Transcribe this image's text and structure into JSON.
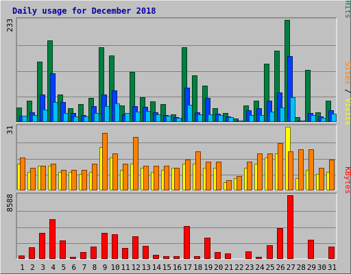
{
  "title": "Daily usage for December 2018",
  "chart_data": {
    "type": "bar",
    "title": "Daily usage for December 2018",
    "categories": [
      "1",
      "2",
      "3",
      "4",
      "5",
      "6",
      "7",
      "8",
      "9",
      "10",
      "11",
      "12",
      "13",
      "14",
      "15",
      "16",
      "17",
      "18",
      "19",
      "20",
      "21",
      "22",
      "23",
      "24",
      "25",
      "26",
      "27",
      "28",
      "29",
      "30",
      "31"
    ],
    "weekend_days": [
      "1",
      "2",
      "8",
      "9",
      "15",
      "16",
      "22",
      "23",
      "29",
      "30"
    ],
    "panels": [
      {
        "name": "pages-files-hits",
        "ymax_label": "233",
        "ymax": 233,
        "legend": [
          {
            "text": "Pages",
            "color": "#00c0ff"
          },
          {
            "text": " / ",
            "color": "#000000"
          },
          {
            "text": "Files",
            "color": "#0040ff"
          },
          {
            "text": " / ",
            "color": "#000000"
          },
          {
            "text": "Hits",
            "color": "#008040"
          }
        ],
        "series": [
          {
            "name": "Hits",
            "color": "#008040",
            "values": [
              33,
              48,
              138,
              186,
              62,
              32,
              40,
              54,
              170,
              152,
              38,
              114,
              56,
              47,
              40,
              17,
              170,
              106,
              83,
              32,
              21,
              8,
              37,
              48,
              133,
              162,
              233,
              11,
              119,
              22,
              48
            ]
          },
          {
            "name": "Files",
            "color": "#0040ff",
            "values": [
              14,
              22,
              62,
              111,
              45,
              20,
              16,
              36,
              63,
              72,
              17,
              36,
              35,
              22,
              15,
              11,
              78,
              22,
              55,
              18,
              13,
              3,
              26,
              31,
              49,
              67,
              150,
              3,
              21,
              12,
              26
            ]
          },
          {
            "name": "Pages",
            "color": "#00c0ff",
            "values": [
              14,
              15,
              28,
              46,
              20,
              13,
              13,
              20,
              36,
              42,
              20,
              24,
              25,
              17,
              14,
              10,
              39,
              17,
              17,
              15,
              11,
              3,
              16,
              16,
              24,
              33,
              56,
              3,
              16,
              10,
              18
            ]
          }
        ]
      },
      {
        "name": "sites-visits",
        "ymax_label": "31",
        "ymax": 31,
        "legend": [
          {
            "text": "Sites",
            "color": "#ff8000"
          },
          {
            "text": " / ",
            "color": "#000000"
          },
          {
            "text": "Visits",
            "color": "#ffff00"
          }
        ],
        "series": [
          {
            "name": "Visits",
            "color": "#ffff00",
            "values": [
              13,
              9,
              12,
              12,
              9,
              9,
              8,
              9,
              21,
              16,
              10,
              13,
              11,
              9,
              10,
              11,
              13,
              13,
              11,
              11,
              4,
              6,
              11,
              13,
              16,
              18,
              31,
              6,
              10,
              8,
              9
            ]
          },
          {
            "name": "Sites",
            "color": "#ff8000",
            "values": [
              16,
              11,
              12,
              13,
              10,
              10,
              10,
              13,
              28,
              18,
              13,
              26,
              12,
              12,
              12,
              11,
              15,
              19,
              14,
              14,
              5,
              7,
              14,
              18,
              18,
              23,
              19,
              20,
              20,
              11,
              15
            ]
          }
        ]
      },
      {
        "name": "kbytes",
        "ymax_label": "8588",
        "ymax": 8588,
        "legend": [
          {
            "text": "KBytes",
            "color": "#ff0000"
          }
        ],
        "series": [
          {
            "name": "KBytes",
            "color": "#ff0000",
            "values": [
              480,
              1530,
              3470,
              5310,
              2510,
              280,
              910,
              1680,
              3520,
              3280,
              1510,
              3010,
              1720,
              550,
              380,
              340,
              4470,
              360,
              2890,
              900,
              740,
              90,
              1020,
              260,
              1810,
              4140,
              8588,
              100,
              2540,
              130,
              1660
            ]
          }
        ]
      }
    ]
  }
}
